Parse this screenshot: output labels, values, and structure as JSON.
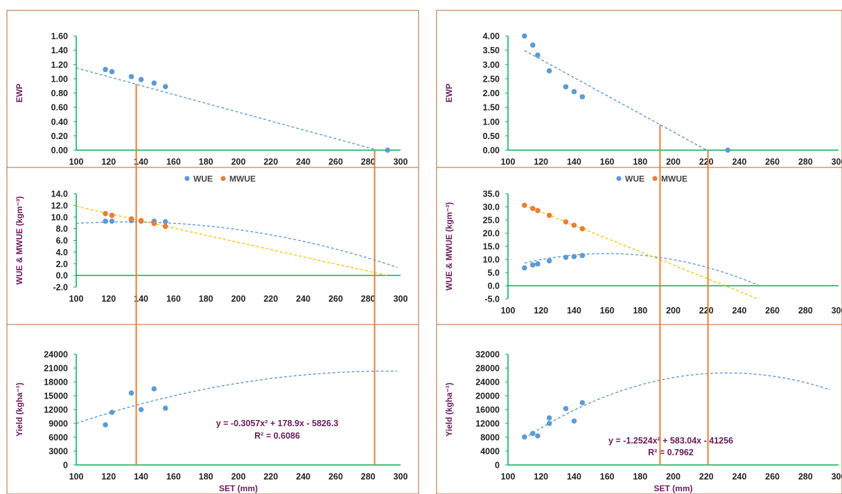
{
  "colors": {
    "wue": "#5b9bd5",
    "mwue": "#ed7d31",
    "trend_wue": "#5b9bd5",
    "trend_mwue": "#ffc000",
    "axis": "#00b050",
    "panel_border": "#b5652f",
    "vline": "#ed7d31",
    "label": "#6a1a5a"
  },
  "chart_data": [
    {
      "id": "left",
      "vlines_x": [
        137,
        284
      ],
      "panels": [
        {
          "id": "ewp",
          "type": "scatter",
          "ylabel": "EWP",
          "xlim": [
            100,
            300
          ],
          "ylim": [
            0,
            1.6
          ],
          "yticks": [
            "0.00",
            "0.20",
            "0.40",
            "0.60",
            "0.80",
            "1.00",
            "1.20",
            "1.40",
            "1.60"
          ],
          "xticks": [
            "100",
            "120",
            "140",
            "160",
            "180",
            "200",
            "220",
            "240",
            "260",
            "280",
            "300"
          ],
          "series": [
            {
              "key": "wue",
              "x": [
                118,
                122,
                134,
                140,
                148,
                155,
                292
              ],
              "y": [
                1.13,
                1.1,
                1.03,
                0.99,
                0.94,
                0.89,
                0.0
              ]
            }
          ],
          "trends": [
            {
              "key": "trend_wue",
              "kind": "linear",
              "coef": [
                1.772,
                -0.0062
              ],
              "x_range": [
                100,
                286
              ]
            }
          ]
        },
        {
          "id": "wue",
          "type": "scatter",
          "ylabel": "WUE & MWUE (kgm⁻³)",
          "xlim": [
            100,
            300
          ],
          "ylim": [
            -2,
            14
          ],
          "yticks": [
            "-2.0",
            "0.0",
            "2.0",
            "4.0",
            "6.0",
            "8.0",
            "10.0",
            "12.0",
            "14.0"
          ],
          "xticks": [
            "100",
            "120",
            "140",
            "160",
            "180",
            "200",
            "220",
            "240",
            "260",
            "280",
            "300"
          ],
          "legend": [
            {
              "key": "wue",
              "label": "WUE"
            },
            {
              "key": "mwue",
              "label": "MWUE"
            }
          ],
          "series": [
            {
              "key": "wue",
              "x": [
                118,
                122,
                134,
                140,
                148,
                155
              ],
              "y": [
                9.3,
                9.3,
                9.4,
                9.3,
                9.3,
                9.2
              ]
            },
            {
              "key": "mwue",
              "x": [
                118,
                122,
                134,
                140,
                148,
                155
              ],
              "y": [
                10.6,
                10.3,
                9.7,
                9.4,
                8.9,
                8.4
              ]
            }
          ],
          "trends": [
            {
              "key": "trend_wue",
              "kind": "poly2",
              "coef": [
                4.42,
                0.0727,
                -0.000278
              ],
              "x_range": [
                100,
                298
              ]
            },
            {
              "key": "trend_mwue",
              "kind": "linear",
              "coef": [
                18.0,
                -0.0617
              ],
              "x_range": [
                100,
                292
              ]
            }
          ]
        },
        {
          "id": "yield",
          "type": "scatter",
          "ylabel": "Yield (kgha⁻¹)",
          "xlabel": "SET (mm)",
          "xlim": [
            100,
            300
          ],
          "ylim": [
            0,
            24000
          ],
          "yticks": [
            "0",
            "3000",
            "6000",
            "9000",
            "12000",
            "15000",
            "18000",
            "21000",
            "24000"
          ],
          "xticks": [
            "100",
            "120",
            "140",
            "160",
            "180",
            "200",
            "220",
            "240",
            "260",
            "280",
            "300"
          ],
          "series": [
            {
              "key": "wue",
              "x": [
                118,
                122,
                134,
                140,
                148,
                155
              ],
              "y": [
                8700,
                11400,
                15600,
                12000,
                16500,
                12300
              ]
            }
          ],
          "trends": [
            {
              "key": "trend_wue",
              "kind": "poly2",
              "coef": [
                -5826.3,
                178.9,
                -0.3057
              ],
              "x_range": [
                100,
                298
              ]
            }
          ],
          "equation": "y = -0.3057x² + 178.9x - 5826.3",
          "r2": "R² = 0.6086"
        }
      ]
    },
    {
      "id": "right",
      "vlines_x": [
        192,
        221
      ],
      "panels": [
        {
          "id": "ewp",
          "type": "scatter",
          "ylabel": "EWP",
          "xlim": [
            100,
            300
          ],
          "ylim": [
            0,
            4.0
          ],
          "yticks": [
            "0.00",
            "0.50",
            "1.00",
            "1.50",
            "2.00",
            "2.50",
            "3.00",
            "3.50",
            "4.00"
          ],
          "xticks": [
            "100",
            "120",
            "140",
            "160",
            "180",
            "200",
            "220",
            "240",
            "260",
            "280",
            "300"
          ],
          "series": [
            {
              "key": "wue",
              "x": [
                110,
                115,
                118,
                125,
                135,
                140,
                145,
                233
              ],
              "y": [
                4.0,
                3.68,
                3.33,
                2.78,
                2.22,
                2.05,
                1.87,
                0.0
              ]
            }
          ],
          "trends": [
            {
              "key": "trend_wue",
              "kind": "linear",
              "coef": [
                6.98,
                -0.0317
              ],
              "x_range": [
                110,
                221
              ]
            }
          ]
        },
        {
          "id": "wue",
          "type": "scatter",
          "ylabel": "WUE & MWUE (kgm⁻³)",
          "xlim": [
            100,
            300
          ],
          "ylim": [
            -5,
            35
          ],
          "yticks": [
            "-5.0",
            "0.0",
            "5.0",
            "10.0",
            "15.0",
            "20.0",
            "25.0",
            "30.0",
            "35.0"
          ],
          "xticks": [
            "100",
            "120",
            "140",
            "160",
            "180",
            "200",
            "220",
            "240",
            "260",
            "280",
            "300"
          ],
          "legend": [
            {
              "key": "wue",
              "label": "WUE"
            },
            {
              "key": "mwue",
              "label": "MWUE"
            }
          ],
          "series": [
            {
              "key": "wue",
              "x": [
                110,
                115,
                118,
                125,
                135,
                140,
                145
              ],
              "y": [
                6.8,
                7.9,
                8.3,
                9.5,
                10.8,
                11.1,
                11.5
              ]
            },
            {
              "key": "mwue",
              "x": [
                110,
                115,
                118,
                125,
                135,
                140,
                145
              ],
              "y": [
                30.6,
                29.4,
                28.6,
                26.8,
                24.3,
                23.0,
                21.7
              ]
            }
          ],
          "trends": [
            {
              "key": "trend_wue",
              "kind": "poly2",
              "coef": [
                -24.6,
                0.4605,
                -0.001439
              ],
              "x_range": [
                110,
                252
              ]
            },
            {
              "key": "trend_mwue",
              "kind": "linear",
              "coef": [
                58.3,
                -0.252
              ],
              "x_range": [
                110,
                252
              ]
            }
          ]
        },
        {
          "id": "yield",
          "type": "scatter",
          "ylabel": "Yield (kgha⁻¹)",
          "xlabel": "SET (mm)",
          "xlim": [
            100,
            300
          ],
          "ylim": [
            0,
            32000
          ],
          "yticks": [
            "0",
            "4000",
            "8000",
            "12000",
            "16000",
            "20000",
            "24000",
            "28000",
            "32000"
          ],
          "xticks": [
            "100",
            "120",
            "140",
            "160",
            "180",
            "200",
            "220",
            "240",
            "260",
            "280",
            "300"
          ],
          "series": [
            {
              "key": "wue",
              "x": [
                110,
                115,
                118,
                125,
                125,
                135,
                140,
                145
              ],
              "y": [
                8100,
                9100,
                8400,
                12000,
                13600,
                16300,
                12700,
                18000
              ]
            }
          ],
          "trends": [
            {
              "key": "trend_wue",
              "kind": "poly2",
              "coef": [
                -41256,
                583.04,
                -1.2524
              ],
              "x_range": [
                110,
                295
              ]
            }
          ],
          "equation": "y = -1.2524x² + 583.04x - 41256",
          "r2": "R² = 0.7962"
        }
      ]
    }
  ]
}
